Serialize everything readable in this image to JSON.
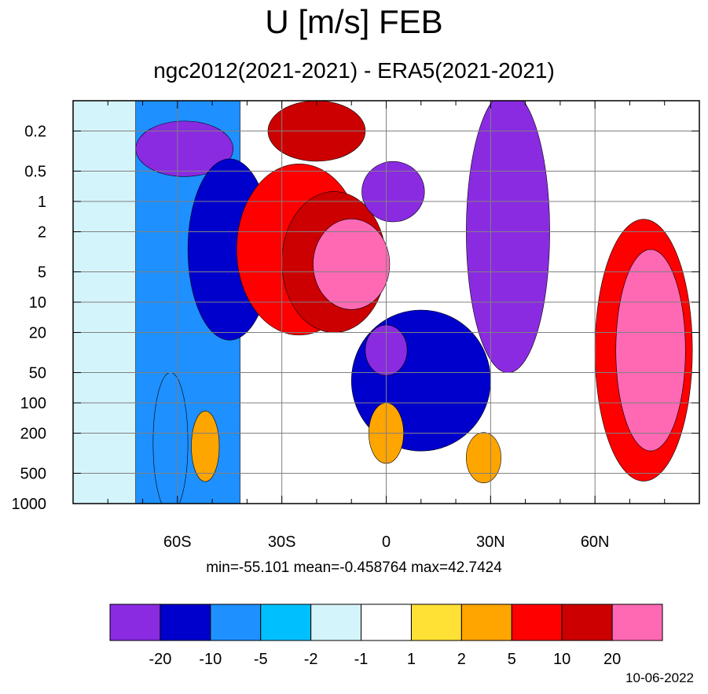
{
  "chart_data": {
    "type": "heatmap",
    "title": "U [m/s] FEB",
    "subtitle": "ngc2012(2021-2021) - ERA5(2021-2021)",
    "x_ticks": [
      "60S",
      "30S",
      "0",
      "30N",
      "60N"
    ],
    "x_tick_values": [
      -60,
      -30,
      0,
      30,
      60
    ],
    "xlim": [
      -90,
      90
    ],
    "y_ticks": [
      "0.2",
      "0.5",
      "1",
      "2",
      "5",
      "10",
      "20",
      "50",
      "100",
      "200",
      "500",
      "1000"
    ],
    "y_tick_values": [
      0.2,
      0.5,
      1,
      2,
      5,
      10,
      20,
      50,
      100,
      200,
      500,
      1000
    ],
    "ylim": [
      0.1,
      1000
    ],
    "y_scale": "log",
    "y_inverted": true,
    "grid": true,
    "stats": {
      "min": "-55.101",
      "mean": "-0.458764",
      "max": "42.7424"
    },
    "stats_text": "min=-55.101   mean=-0.458764   max=42.7424",
    "colorbar": {
      "levels": [
        "-20",
        "-10",
        "-5",
        "-2",
        "-1",
        "1",
        "2",
        "5",
        "10",
        "20"
      ],
      "colors": [
        "#8a2be2",
        "#0000cd",
        "#1e90ff",
        "#00bfff",
        "#d4f4fc",
        "#ffffff",
        "#ffe135",
        "#ffa500",
        "#ff0000",
        "#cc0000",
        "#ff69b4"
      ]
    },
    "date": "10-06-2022",
    "features": [
      {
        "kind": "band",
        "lat": [
          -90,
          -70
        ],
        "p": [
          0.1,
          1000
        ],
        "level": "-1"
      },
      {
        "kind": "band",
        "lat": [
          -72,
          -42
        ],
        "p": [
          0.1,
          1000
        ],
        "level": "-5"
      },
      {
        "kind": "blob",
        "lat": -58,
        "p": 0.3,
        "w": 28,
        "h": 0.55,
        "level": "-20"
      },
      {
        "kind": "blob",
        "lat": -45,
        "p": 3,
        "w": 24,
        "h": 1.8,
        "level": "-10"
      },
      {
        "kind": "blob",
        "lat": -25,
        "p": 3,
        "w": 36,
        "h": 1.7,
        "level": "10"
      },
      {
        "kind": "blob",
        "lat": -15,
        "p": 4,
        "w": 30,
        "h": 1.4,
        "level": "20"
      },
      {
        "kind": "blob",
        "lat": -10,
        "p": 4.2,
        "w": 22,
        "h": 0.9,
        "level": ">20"
      },
      {
        "kind": "blob",
        "lat": -20,
        "p": 0.2,
        "w": 28,
        "h": 0.6,
        "level": "20"
      },
      {
        "kind": "blob",
        "lat": 2,
        "p": 0.8,
        "w": 18,
        "h": 0.6,
        "level": "-20"
      },
      {
        "kind": "blob",
        "lat": 35,
        "p": 2,
        "w": 24,
        "h": 2.8,
        "level": "<-20"
      },
      {
        "kind": "blob",
        "lat": 10,
        "p": 60,
        "w": 40,
        "h": 1.4,
        "level": "-10"
      },
      {
        "kind": "blob",
        "lat": 0,
        "p": 30,
        "w": 12,
        "h": 0.5,
        "level": "<-20"
      },
      {
        "kind": "blob",
        "lat": 74,
        "p": 30,
        "w": 28,
        "h": 2.6,
        "level": "10"
      },
      {
        "kind": "blob",
        "lat": 76,
        "p": 30,
        "w": 20,
        "h": 2.0,
        "level": ">20"
      },
      {
        "kind": "blob",
        "lat": -52,
        "p": 270,
        "w": 8,
        "h": 0.7,
        "level": "5"
      },
      {
        "kind": "blob",
        "lat": 0,
        "p": 200,
        "w": 10,
        "h": 0.6,
        "level": "5"
      },
      {
        "kind": "blob",
        "lat": 28,
        "p": 350,
        "w": 10,
        "h": 0.5,
        "level": "5"
      },
      {
        "kind": "blob",
        "lat": -62,
        "p": 250,
        "w": 10,
        "h": 1.4,
        "level": "-5"
      }
    ]
  }
}
